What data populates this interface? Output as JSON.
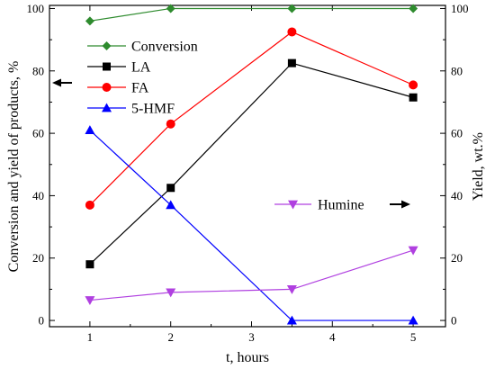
{
  "chart_data": {
    "type": "line",
    "xlabel": "t, hours",
    "ylabel_left": "Conversion and yield of products, %",
    "ylabel_right": "Yield, wt.%",
    "xlim": [
      0.5,
      5.4
    ],
    "ylim": [
      -2,
      101
    ],
    "x_ticks": [
      1,
      2,
      3,
      4,
      5
    ],
    "y_ticks": [
      0,
      20,
      40,
      60,
      80,
      100
    ],
    "legend_position": "top-left",
    "series": [
      {
        "name": "Conversion",
        "axis": "left",
        "color": "#2e8b2e",
        "marker": "diamond",
        "x": [
          1,
          2,
          3.5,
          5
        ],
        "y": [
          96,
          100,
          100,
          100
        ]
      },
      {
        "name": "LA",
        "axis": "left",
        "color": "#000000",
        "marker": "square",
        "x": [
          1,
          2,
          3.5,
          5
        ],
        "y": [
          18,
          42.5,
          82.5,
          71.5
        ]
      },
      {
        "name": "FA",
        "axis": "left",
        "color": "#ff0000",
        "marker": "circle",
        "x": [
          1,
          2,
          3.5,
          5
        ],
        "y": [
          37,
          63,
          92.5,
          75.5
        ]
      },
      {
        "name": "5-HMF",
        "axis": "left",
        "color": "#0000ff",
        "marker": "triangle-up",
        "x": [
          1,
          2,
          3.5,
          5
        ],
        "y": [
          61,
          37,
          0,
          0
        ]
      },
      {
        "name": "Humine",
        "axis": "right",
        "color": "#b040e0",
        "marker": "triangle-down",
        "x": [
          1,
          2,
          3.5,
          5
        ],
        "y": [
          6.5,
          9,
          10,
          22.5
        ]
      }
    ],
    "annotations": [
      {
        "type": "arrow",
        "direction": "left",
        "target_axis": "left"
      },
      {
        "type": "arrow",
        "direction": "right",
        "target_axis": "right"
      }
    ]
  }
}
